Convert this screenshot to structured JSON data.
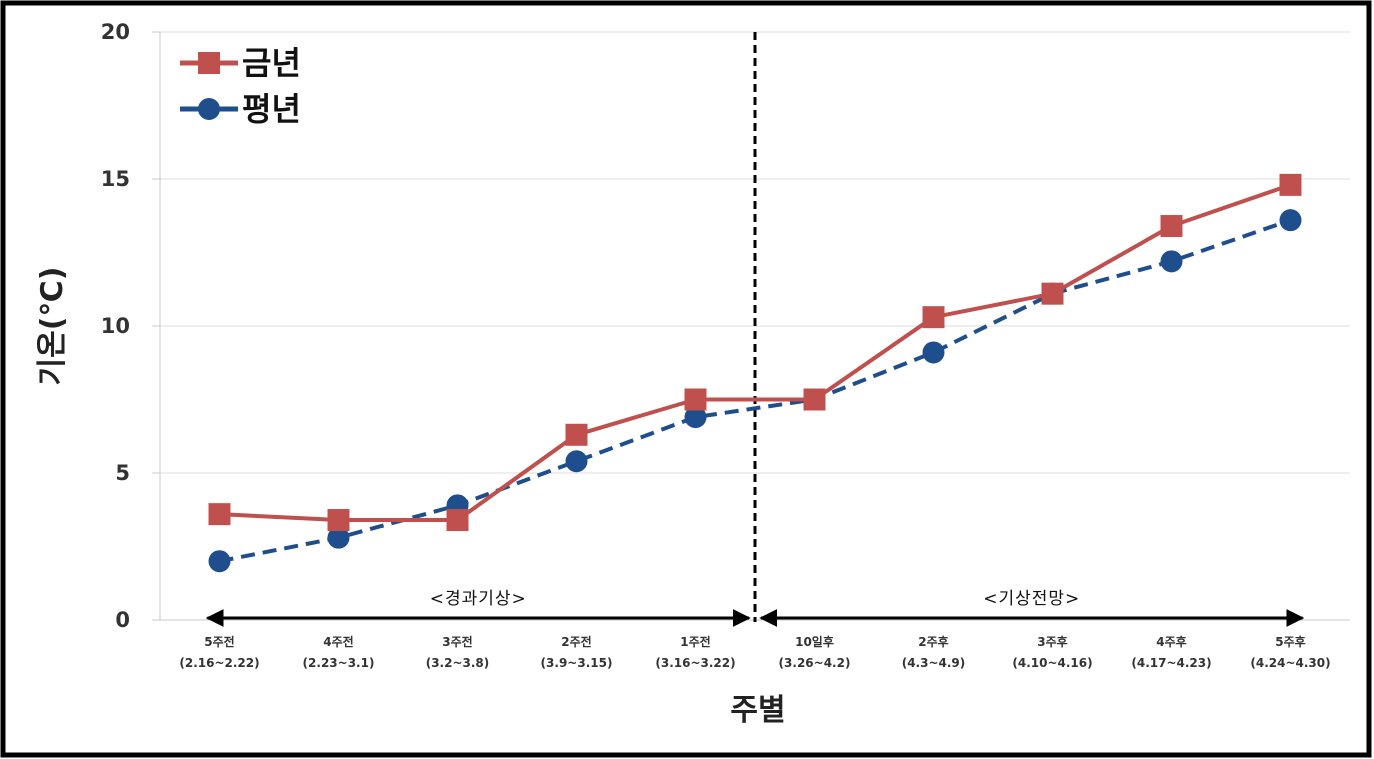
{
  "chart_data": {
    "type": "line",
    "title": "",
    "xlabel": "주별",
    "ylabel": "기온(℃)",
    "ylim": [
      0,
      20
    ],
    "yticks": [
      "0",
      "5",
      "10",
      "15",
      "20"
    ],
    "grid": true,
    "legend_position": "top-left",
    "categories": [
      [
        "5주전",
        "(2.16~2.22)"
      ],
      [
        "4주전",
        "(2.23~3.1)"
      ],
      [
        "3주전",
        "(3.2~3.8)"
      ],
      [
        "2주전",
        "(3.9~3.15)"
      ],
      [
        "1주전",
        "(3.16~3.22)"
      ],
      [
        "10일후",
        "(3.26~4.2)"
      ],
      [
        "2주후",
        "(4.3~4.9)"
      ],
      [
        "3주후",
        "(4.10~4.16)"
      ],
      [
        "4주후",
        "(4.17~4.23)"
      ],
      [
        "5주후",
        "(4.24~4.30)"
      ]
    ],
    "series": [
      {
        "name": "금년",
        "color": "#c0504d",
        "marker": "square",
        "line_style": "solid",
        "values": [
          3.6,
          3.4,
          3.4,
          6.3,
          7.5,
          7.5,
          10.3,
          11.1,
          13.4,
          14.8
        ]
      },
      {
        "name": "평년",
        "color": "#1f4e8c",
        "marker": "circle",
        "line_style": "dashed",
        "values": [
          2.0,
          2.8,
          3.9,
          5.4,
          6.9,
          7.5,
          9.1,
          11.1,
          12.2,
          13.6
        ]
      }
    ],
    "regions": [
      {
        "label": "<경과기상>",
        "from_index": 0,
        "to_index": 4
      },
      {
        "label": "<기상전망>",
        "from_index": 5,
        "to_index": 9
      }
    ],
    "divider_after_index": 4
  }
}
